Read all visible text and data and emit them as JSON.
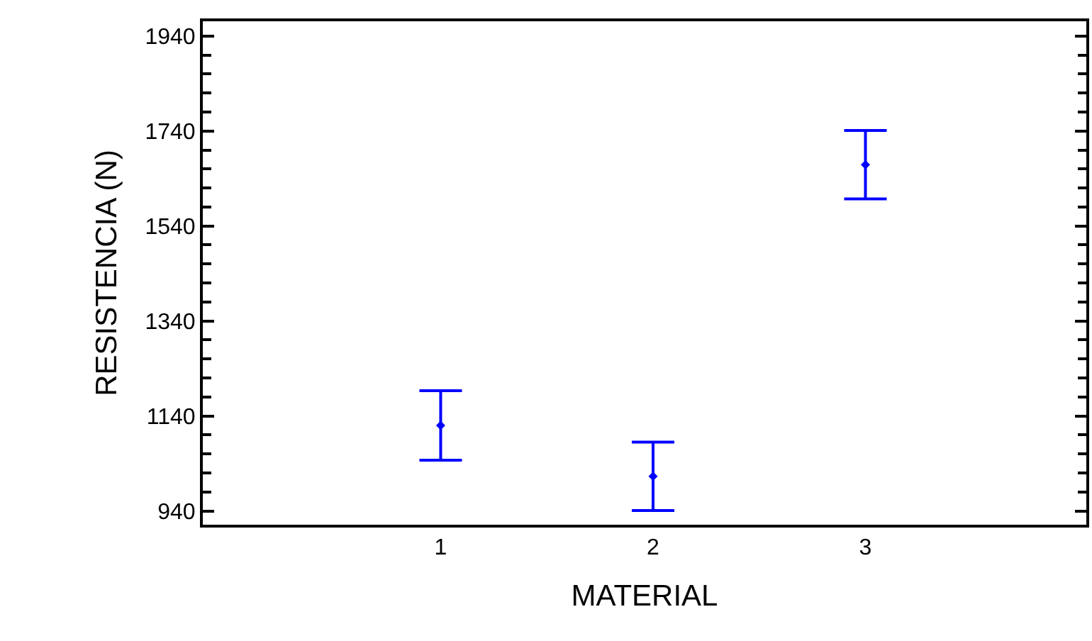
{
  "chart_data": {
    "type": "scatter",
    "xlabel": "MATERIAL",
    "ylabel": "RESISTENCIA (N)",
    "x": [
      1,
      2,
      3
    ],
    "series": [
      {
        "color": "#0000ff",
        "values": [
          1120,
          1013,
          1669
        ],
        "errors": [
          73,
          72,
          72
        ]
      }
    ],
    "marker": "diamond",
    "xlim": [
      -0.12,
      4.04
    ],
    "xticks": [
      1,
      2,
      3
    ],
    "ylim": [
      911,
      1971
    ],
    "yticks": [
      940,
      1140,
      1340,
      1540,
      1740,
      1940
    ],
    "grid": false
  }
}
